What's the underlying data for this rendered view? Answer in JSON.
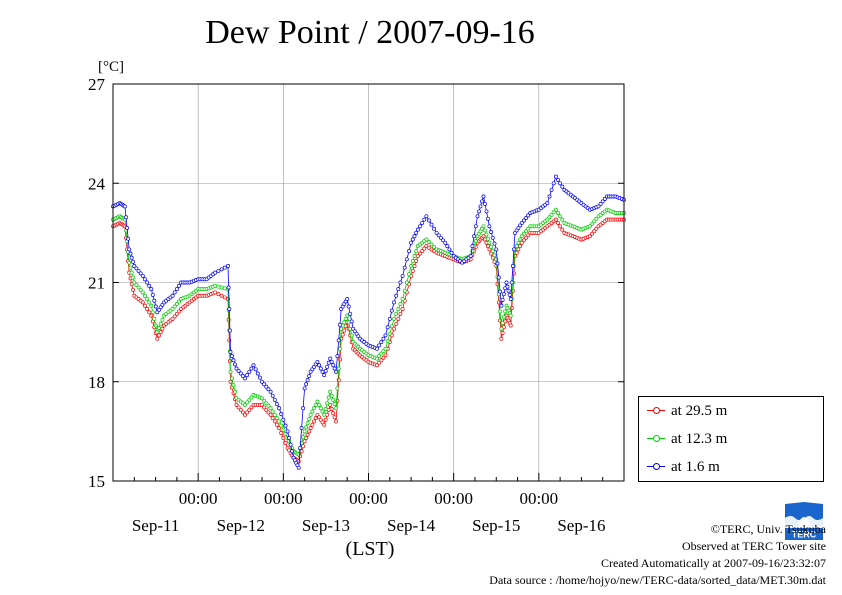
{
  "title": "Dew Point / 2007-09-16",
  "chart_data": {
    "type": "line",
    "title": "Dew Point / 2007-09-16",
    "ylabel": "[°C]",
    "xlabel": "(LST)",
    "ylim": [
      15,
      27
    ],
    "yticks": [
      15,
      18,
      21,
      24,
      27
    ],
    "xlim": [
      0,
      6
    ],
    "x_time_labels": [
      {
        "x": 1,
        "label": "00:00"
      },
      {
        "x": 2,
        "label": "00:00"
      },
      {
        "x": 3,
        "label": "00:00"
      },
      {
        "x": 4,
        "label": "00:00"
      },
      {
        "x": 5,
        "label": "00:00"
      }
    ],
    "x_day_labels": [
      {
        "x": 0.5,
        "label": "Sep-11"
      },
      {
        "x": 1.5,
        "label": "Sep-12"
      },
      {
        "x": 2.5,
        "label": "Sep-13"
      },
      {
        "x": 3.5,
        "label": "Sep-14"
      },
      {
        "x": 4.5,
        "label": "Sep-15"
      },
      {
        "x": 5.5,
        "label": "Sep-16"
      }
    ],
    "legend_position": "right",
    "grid": true,
    "series": [
      {
        "name": "at 29.5 m",
        "color": "#ff0000",
        "points": [
          [
            0.0,
            22.7
          ],
          [
            0.08,
            22.8
          ],
          [
            0.14,
            22.7
          ],
          [
            0.19,
            21.3
          ],
          [
            0.25,
            20.6
          ],
          [
            0.35,
            20.4
          ],
          [
            0.45,
            20.0
          ],
          [
            0.52,
            19.3
          ],
          [
            0.6,
            19.7
          ],
          [
            0.7,
            19.9
          ],
          [
            0.8,
            20.2
          ],
          [
            0.9,
            20.4
          ],
          [
            1.0,
            20.6
          ],
          [
            1.1,
            20.6
          ],
          [
            1.2,
            20.7
          ],
          [
            1.35,
            20.5
          ],
          [
            1.38,
            18.0
          ],
          [
            1.45,
            17.3
          ],
          [
            1.55,
            17.0
          ],
          [
            1.65,
            17.3
          ],
          [
            1.75,
            17.3
          ],
          [
            1.85,
            17.0
          ],
          [
            1.95,
            16.6
          ],
          [
            2.05,
            16.0
          ],
          [
            2.12,
            15.7
          ],
          [
            2.18,
            15.6
          ],
          [
            2.25,
            16.2
          ],
          [
            2.32,
            16.6
          ],
          [
            2.4,
            17.0
          ],
          [
            2.48,
            16.7
          ],
          [
            2.55,
            17.3
          ],
          [
            2.62,
            16.8
          ],
          [
            2.68,
            19.3
          ],
          [
            2.75,
            19.8
          ],
          [
            2.82,
            19.0
          ],
          [
            2.9,
            18.8
          ],
          [
            3.0,
            18.6
          ],
          [
            3.1,
            18.5
          ],
          [
            3.2,
            18.8
          ],
          [
            3.3,
            19.6
          ],
          [
            3.4,
            20.2
          ],
          [
            3.5,
            21.2
          ],
          [
            3.58,
            21.8
          ],
          [
            3.68,
            22.1
          ],
          [
            3.8,
            21.9
          ],
          [
            3.9,
            21.8
          ],
          [
            4.0,
            21.7
          ],
          [
            4.1,
            21.6
          ],
          [
            4.2,
            21.7
          ],
          [
            4.28,
            22.2
          ],
          [
            4.35,
            22.4
          ],
          [
            4.42,
            22.0
          ],
          [
            4.5,
            21.5
          ],
          [
            4.56,
            19.3
          ],
          [
            4.62,
            20.0
          ],
          [
            4.67,
            19.7
          ],
          [
            4.72,
            21.8
          ],
          [
            4.8,
            22.2
          ],
          [
            4.9,
            22.5
          ],
          [
            5.0,
            22.5
          ],
          [
            5.1,
            22.7
          ],
          [
            5.2,
            22.9
          ],
          [
            5.3,
            22.5
          ],
          [
            5.4,
            22.4
          ],
          [
            5.5,
            22.3
          ],
          [
            5.6,
            22.4
          ],
          [
            5.7,
            22.7
          ],
          [
            5.8,
            22.9
          ],
          [
            5.9,
            22.9
          ],
          [
            6.0,
            22.9
          ]
        ]
      },
      {
        "name": "at 12.3 m",
        "color": "#00cc00",
        "points": [
          [
            0.0,
            22.9
          ],
          [
            0.08,
            23.0
          ],
          [
            0.14,
            22.9
          ],
          [
            0.19,
            21.6
          ],
          [
            0.25,
            21.0
          ],
          [
            0.35,
            20.7
          ],
          [
            0.45,
            20.3
          ],
          [
            0.52,
            19.5
          ],
          [
            0.6,
            20.0
          ],
          [
            0.7,
            20.2
          ],
          [
            0.8,
            20.5
          ],
          [
            0.9,
            20.6
          ],
          [
            1.0,
            20.8
          ],
          [
            1.1,
            20.8
          ],
          [
            1.2,
            20.9
          ],
          [
            1.35,
            20.8
          ],
          [
            1.38,
            18.3
          ],
          [
            1.45,
            17.5
          ],
          [
            1.55,
            17.3
          ],
          [
            1.65,
            17.6
          ],
          [
            1.75,
            17.5
          ],
          [
            1.85,
            17.2
          ],
          [
            1.95,
            16.8
          ],
          [
            2.05,
            16.3
          ],
          [
            2.12,
            15.9
          ],
          [
            2.18,
            15.8
          ],
          [
            2.25,
            16.5
          ],
          [
            2.32,
            17.0
          ],
          [
            2.4,
            17.4
          ],
          [
            2.48,
            17.0
          ],
          [
            2.55,
            17.7
          ],
          [
            2.62,
            17.2
          ],
          [
            2.68,
            19.6
          ],
          [
            2.75,
            20.0
          ],
          [
            2.82,
            19.2
          ],
          [
            2.9,
            19.0
          ],
          [
            3.0,
            18.8
          ],
          [
            3.1,
            18.7
          ],
          [
            3.2,
            19.0
          ],
          [
            3.3,
            19.9
          ],
          [
            3.4,
            20.5
          ],
          [
            3.5,
            21.5
          ],
          [
            3.58,
            22.1
          ],
          [
            3.68,
            22.3
          ],
          [
            3.8,
            22.0
          ],
          [
            3.9,
            21.9
          ],
          [
            4.0,
            21.8
          ],
          [
            4.1,
            21.7
          ],
          [
            4.2,
            21.8
          ],
          [
            4.28,
            22.4
          ],
          [
            4.35,
            22.7
          ],
          [
            4.42,
            22.2
          ],
          [
            4.5,
            21.7
          ],
          [
            4.56,
            19.6
          ],
          [
            4.62,
            20.3
          ],
          [
            4.67,
            20.0
          ],
          [
            4.72,
            22.0
          ],
          [
            4.8,
            22.4
          ],
          [
            4.9,
            22.7
          ],
          [
            5.0,
            22.7
          ],
          [
            5.1,
            22.9
          ],
          [
            5.2,
            23.2
          ],
          [
            5.3,
            22.8
          ],
          [
            5.4,
            22.7
          ],
          [
            5.5,
            22.6
          ],
          [
            5.6,
            22.7
          ],
          [
            5.7,
            23.0
          ],
          [
            5.8,
            23.2
          ],
          [
            5.9,
            23.1
          ],
          [
            6.0,
            23.1
          ]
        ]
      },
      {
        "name": "at 1.6 m",
        "color": "#0000ff",
        "points": [
          [
            0.0,
            23.3
          ],
          [
            0.08,
            23.4
          ],
          [
            0.14,
            23.3
          ],
          [
            0.19,
            22.0
          ],
          [
            0.25,
            21.5
          ],
          [
            0.35,
            21.2
          ],
          [
            0.45,
            20.8
          ],
          [
            0.52,
            20.1
          ],
          [
            0.6,
            20.4
          ],
          [
            0.7,
            20.6
          ],
          [
            0.8,
            21.0
          ],
          [
            0.9,
            21.0
          ],
          [
            1.0,
            21.1
          ],
          [
            1.1,
            21.1
          ],
          [
            1.2,
            21.3
          ],
          [
            1.35,
            21.5
          ],
          [
            1.38,
            18.9
          ],
          [
            1.45,
            18.4
          ],
          [
            1.55,
            18.1
          ],
          [
            1.65,
            18.5
          ],
          [
            1.75,
            18.0
          ],
          [
            1.85,
            17.7
          ],
          [
            1.95,
            17.2
          ],
          [
            2.05,
            16.5
          ],
          [
            2.12,
            15.7
          ],
          [
            2.18,
            15.4
          ],
          [
            2.25,
            17.8
          ],
          [
            2.32,
            18.3
          ],
          [
            2.4,
            18.6
          ],
          [
            2.48,
            18.2
          ],
          [
            2.55,
            18.7
          ],
          [
            2.62,
            18.3
          ],
          [
            2.68,
            20.2
          ],
          [
            2.75,
            20.5
          ],
          [
            2.82,
            19.6
          ],
          [
            2.9,
            19.3
          ],
          [
            3.0,
            19.1
          ],
          [
            3.1,
            19.0
          ],
          [
            3.2,
            19.4
          ],
          [
            3.3,
            20.4
          ],
          [
            3.4,
            21.2
          ],
          [
            3.5,
            22.2
          ],
          [
            3.58,
            22.6
          ],
          [
            3.68,
            23.0
          ],
          [
            3.8,
            22.5
          ],
          [
            3.9,
            22.2
          ],
          [
            4.0,
            21.8
          ],
          [
            4.1,
            21.6
          ],
          [
            4.2,
            21.8
          ],
          [
            4.28,
            23.0
          ],
          [
            4.35,
            23.6
          ],
          [
            4.42,
            22.7
          ],
          [
            4.5,
            22.0
          ],
          [
            4.56,
            20.3
          ],
          [
            4.62,
            21.0
          ],
          [
            4.67,
            20.5
          ],
          [
            4.72,
            22.5
          ],
          [
            4.8,
            22.8
          ],
          [
            4.9,
            23.1
          ],
          [
            5.0,
            23.2
          ],
          [
            5.1,
            23.4
          ],
          [
            5.2,
            24.2
          ],
          [
            5.3,
            23.8
          ],
          [
            5.4,
            23.6
          ],
          [
            5.5,
            23.4
          ],
          [
            5.6,
            23.2
          ],
          [
            5.7,
            23.3
          ],
          [
            5.8,
            23.6
          ],
          [
            5.9,
            23.6
          ],
          [
            6.0,
            23.5
          ]
        ]
      }
    ]
  },
  "credits": {
    "copyright": "©TERC, Univ. Tsukuba",
    "observed": "Observed at TERC Tower site",
    "created": "Created Automatically at 2007-09-16/23:32:07",
    "source": "Data source : /home/hojyo/new/TERC-data/sorted_data/MET.30m.dat"
  },
  "logo": {
    "icon": "terc-logo-icon",
    "text": "TERC",
    "color": "#1a66cc"
  }
}
